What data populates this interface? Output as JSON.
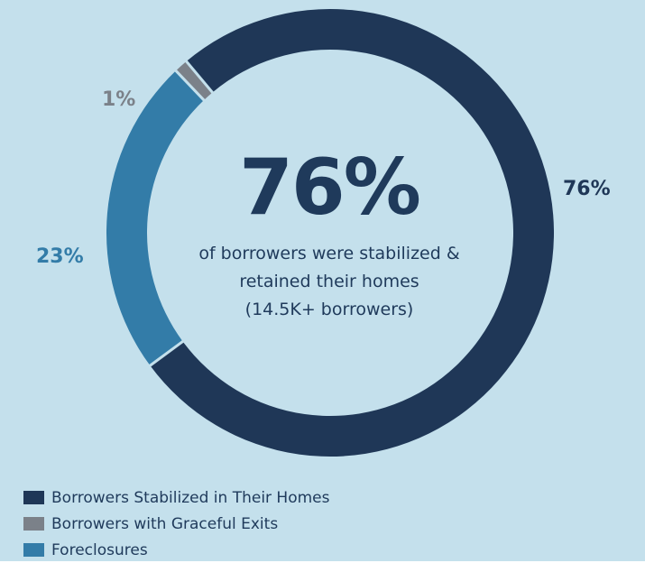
{
  "colors": {
    "background": "#c4e0ec",
    "panel_text": "#1f3a5b",
    "stabilized": "#1f3757",
    "graceful": "#7b8189",
    "foreclosures": "#337ca8",
    "separator": "#c4e0ec"
  },
  "center": {
    "headline": "76%",
    "caption_lines": [
      "of borrowers were stabilized &",
      "retained their homes",
      "(14.5K+ borrowers)"
    ]
  },
  "chart_data": {
    "type": "pie",
    "variant": "donut",
    "start_angle_deg": -40,
    "direction": "clockwise",
    "slices": [
      {
        "name": "Borrowers Stabilized in Their Homes",
        "value": 76,
        "label": "76%",
        "color_key": "stabilized"
      },
      {
        "name": "Foreclosures",
        "value": 23,
        "label": "23%",
        "color_key": "foreclosures"
      },
      {
        "name": "Borrowers with Graceful Exits",
        "value": 1,
        "label": "1%",
        "color_key": "graceful"
      }
    ],
    "legend": {
      "placement": "bottom-left",
      "entries": [
        {
          "label": "Borrowers Stabilized in Their Homes",
          "color_key": "stabilized"
        },
        {
          "label": "Borrowers with Graceful Exits",
          "color_key": "graceful"
        },
        {
          "label": "Foreclosures",
          "color_key": "foreclosures"
        }
      ]
    }
  }
}
